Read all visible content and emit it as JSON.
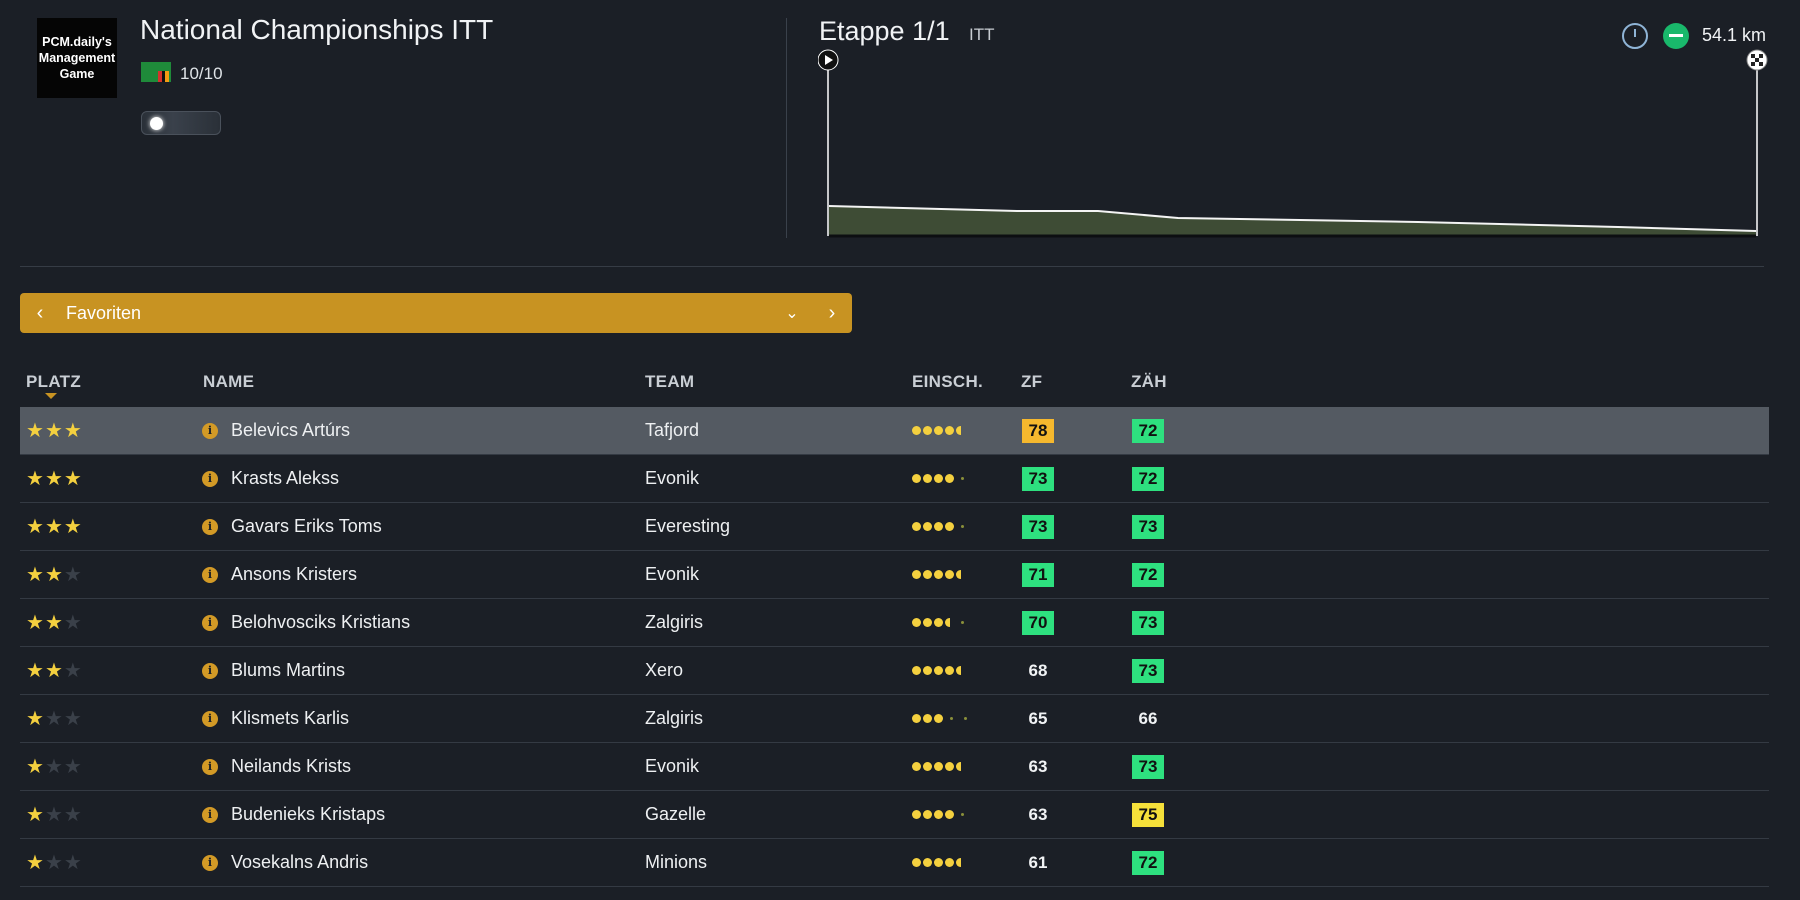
{
  "header": {
    "logo_text": "PCM.daily's\nManagement\nGame",
    "race_title": "National Championships ITT",
    "race_class": "10/10",
    "flag_colors": [
      "#1f8a3a",
      "#d6312c",
      "#111111",
      "#f39c12"
    ]
  },
  "stage": {
    "title": "Etappe 1/1",
    "type": "ITT",
    "distance": "54.1 km",
    "icons": [
      "clock-icon",
      "flat-stage-icon",
      "start-icon",
      "finish-flag-icon"
    ]
  },
  "selector": {
    "label": "Favoriten",
    "prev_icon": "chevron-left-icon",
    "dropdown_icon": "chevron-down-icon",
    "next_icon": "chevron-right-icon"
  },
  "table": {
    "columns": [
      "PLATZ",
      "NAME",
      "TEAM",
      "EINSCH.",
      "ZF",
      "ZÄH"
    ],
    "rows": [
      {
        "stars": 3,
        "name": "Belevics Artúrs",
        "team": "Tafjord",
        "form": "4.5",
        "zf": "78",
        "zf_color": "#f5b82e",
        "zah": "72",
        "zah_color": "#2ee07f",
        "selected": true
      },
      {
        "stars": 3,
        "name": "Krasts Alekss",
        "team": "Evonik",
        "form": "4",
        "zf": "73",
        "zf_color": "#2ee07f",
        "zah": "72",
        "zah_color": "#2ee07f"
      },
      {
        "stars": 3,
        "name": "Gavars Eriks Toms",
        "team": "Everesting",
        "form": "4",
        "zf": "73",
        "zf_color": "#2ee07f",
        "zah": "73",
        "zah_color": "#2ee07f"
      },
      {
        "stars": 2,
        "name": "Ansons Kristers",
        "team": "Evonik",
        "form": "4.5",
        "zf": "71",
        "zf_color": "#2ee07f",
        "zah": "72",
        "zah_color": "#2ee07f"
      },
      {
        "stars": 2,
        "name": "Belohvosciks Kristians",
        "team": "Zalgiris",
        "form": "3.5",
        "zf": "70",
        "zf_color": "#2ee07f",
        "zah": "73",
        "zah_color": "#2ee07f"
      },
      {
        "stars": 2,
        "name": "Blums Martins",
        "team": "Xero",
        "form": "4.5",
        "zf": "68",
        "zf_color": "",
        "zah": "73",
        "zah_color": "#2ee07f"
      },
      {
        "stars": 1,
        "name": "Klismets Karlis",
        "team": "Zalgiris",
        "form": "3",
        "zf": "65",
        "zf_color": "",
        "zah": "66",
        "zah_color": ""
      },
      {
        "stars": 1,
        "name": "Neilands Krists",
        "team": "Evonik",
        "form": "4.5",
        "zf": "63",
        "zf_color": "",
        "zah": "73",
        "zah_color": "#2ee07f"
      },
      {
        "stars": 1,
        "name": "Budenieks Kristaps",
        "team": "Gazelle",
        "form": "4",
        "zf": "63",
        "zf_color": "",
        "zah": "75",
        "zah_color": "#f5e03a"
      },
      {
        "stars": 1,
        "name": "Vosekalns Andris",
        "team": "Minions",
        "form": "4.5",
        "zf": "61",
        "zf_color": "",
        "zah": "72",
        "zah_color": "#2ee07f"
      }
    ]
  }
}
